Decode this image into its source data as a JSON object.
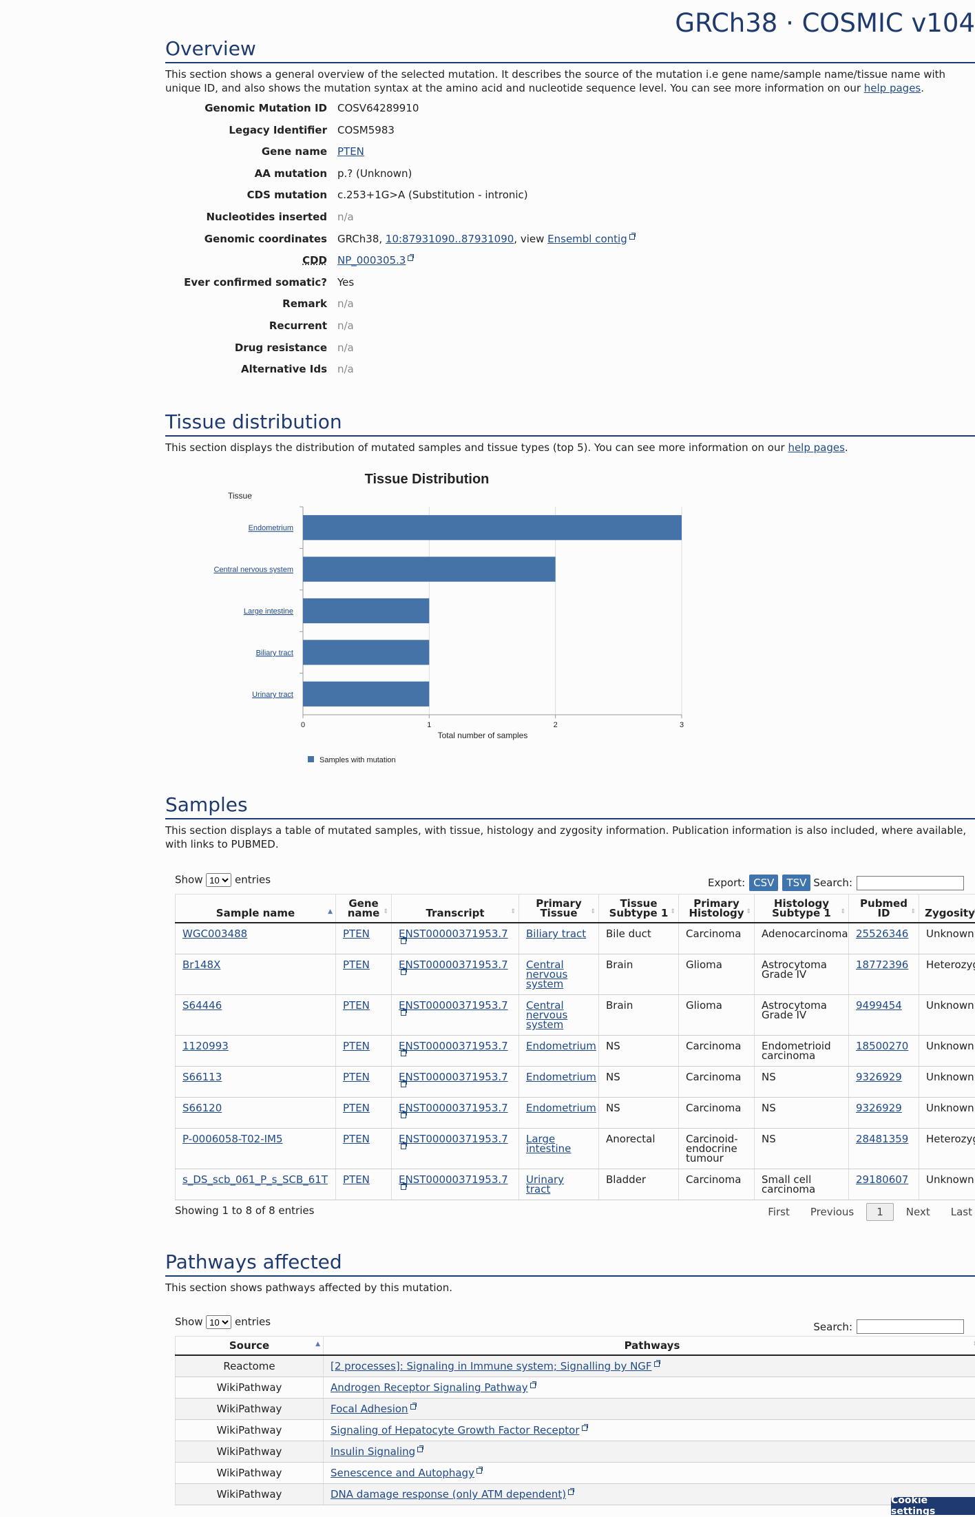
{
  "header": {
    "title": "GRCh38 · COSMIC v104"
  },
  "overview": {
    "title": "Overview",
    "desc_before": "This section shows a general overview of the selected mutation. It describes the source of the mutation i.e gene name/sample name/tissue name with unique ID, and also shows the mutation syntax at the amino acid and nucleotide sequence level. You can see more information on our ",
    "help_link": "help pages",
    "desc_after": ".",
    "fields": {
      "genomic_mutation_id": {
        "label": "Genomic Mutation ID",
        "value": "COSV64289910"
      },
      "legacy_identifier": {
        "label": "Legacy Identifier",
        "value": "COSM5983"
      },
      "gene_name": {
        "label": "Gene name",
        "value": "PTEN"
      },
      "aa_mutation": {
        "label": "AA mutation",
        "value": "p.? (Unknown)"
      },
      "cds_mutation": {
        "label": "CDS mutation",
        "value": "c.253+1G>A (Substitution - intronic)"
      },
      "nucleotides_inserted": {
        "label": "Nucleotides inserted",
        "value": "n/a"
      },
      "genomic_coordinates": {
        "label": "Genomic coordinates",
        "prefix": "GRCh38, ",
        "coord_link": "10:87931090..87931090",
        "middle": ", view ",
        "ensembl_link": "Ensembl contig"
      },
      "cdd": {
        "label": "CDD",
        "value": "NP_000305.3"
      },
      "ever_confirmed_somatic": {
        "label": "Ever confirmed somatic?",
        "value": "Yes"
      },
      "remark": {
        "label": "Remark",
        "value": "n/a"
      },
      "recurrent": {
        "label": "Recurrent",
        "value": "n/a"
      },
      "drug_resistance": {
        "label": "Drug resistance",
        "value": "n/a"
      },
      "alternative_ids": {
        "label": "Alternative Ids",
        "value": "n/a"
      }
    }
  },
  "tissue": {
    "title": "Tissue distribution",
    "desc_before": "This section displays the distribution of mutated samples and tissue types (top 5). You can see more information on our ",
    "help_link": "help pages",
    "desc_after": "."
  },
  "chart_data": {
    "type": "bar",
    "orientation": "horizontal",
    "title": "Tissue Distribution",
    "ylabel": "Tissue",
    "xlabel": "Total number of samples",
    "categories": [
      "Endometrium",
      "Central nervous system",
      "Large intestine",
      "Biliary tract",
      "Urinary tract"
    ],
    "series": [
      {
        "name": "Samples with mutation",
        "values": [
          3,
          2,
          1,
          1,
          1
        ]
      }
    ],
    "xlim": [
      0,
      3
    ],
    "xticks": [
      "0",
      "1",
      "2",
      "3"
    ],
    "grid": true,
    "legend": "bottom-left",
    "color": "#4572a7"
  },
  "samples": {
    "title": "Samples",
    "desc": "This section displays a table of mutated samples, with tissue, histology and zygosity information. Publication information is also included, where available, with links to PUBMED.",
    "show_label": "Show",
    "entries_label": "entries",
    "page_length": "10",
    "export_label": "Export:",
    "csv": "CSV",
    "tsv": "TSV",
    "search_label": "Search:",
    "columns": [
      "Sample name",
      "Gene name",
      "Transcript",
      "Primary Tissue",
      "Tissue Subtype 1",
      "Primary Histology",
      "Histology Subtype 1",
      "Pubmed ID",
      "Zygosity"
    ],
    "rows": [
      {
        "sample": "WGC003488",
        "gene": "PTEN",
        "transcript": "ENST00000371953.7",
        "tissue": "Biliary tract",
        "subtype": "Bile duct",
        "histology": "Carcinoma",
        "hist_subtype": "Adenocarcinoma",
        "pubmed": "25526346",
        "zygosity": "Unknown"
      },
      {
        "sample": "Br148X",
        "gene": "PTEN",
        "transcript": "ENST00000371953.7",
        "tissue": "Central nervous system",
        "subtype": "Brain",
        "histology": "Glioma",
        "hist_subtype": "Astrocytoma Grade IV",
        "pubmed": "18772396",
        "zygosity": "Heterozygous"
      },
      {
        "sample": "S64446",
        "gene": "PTEN",
        "transcript": "ENST00000371953.7",
        "tissue": "Central nervous system",
        "subtype": "Brain",
        "histology": "Glioma",
        "hist_subtype": "Astrocytoma Grade IV",
        "pubmed": "9499454",
        "zygosity": "Unknown"
      },
      {
        "sample": "1120993",
        "gene": "PTEN",
        "transcript": "ENST00000371953.7",
        "tissue": "Endometrium",
        "subtype": "NS",
        "histology": "Carcinoma",
        "hist_subtype": "Endometrioid carcinoma",
        "pubmed": "18500270",
        "zygosity": "Unknown"
      },
      {
        "sample": "S66113",
        "gene": "PTEN",
        "transcript": "ENST00000371953.7",
        "tissue": "Endometrium",
        "subtype": "NS",
        "histology": "Carcinoma",
        "hist_subtype": "NS",
        "pubmed": "9326929",
        "zygosity": "Unknown"
      },
      {
        "sample": "S66120",
        "gene": "PTEN",
        "transcript": "ENST00000371953.7",
        "tissue": "Endometrium",
        "subtype": "NS",
        "histology": "Carcinoma",
        "hist_subtype": "NS",
        "pubmed": "9326929",
        "zygosity": "Unknown"
      },
      {
        "sample": "P-0006058-T02-IM5",
        "gene": "PTEN",
        "transcript": "ENST00000371953.7",
        "tissue": "Large intestine",
        "subtype": "Anorectal",
        "histology": "Carcinoid-endocrine tumour",
        "hist_subtype": "NS",
        "pubmed": "28481359",
        "zygosity": "Heterozygous"
      },
      {
        "sample": "s_DS_scb_061_P_s_SCB_61T",
        "gene": "PTEN",
        "transcript": "ENST00000371953.7",
        "tissue": "Urinary tract",
        "subtype": "Bladder",
        "histology": "Carcinoma",
        "hist_subtype": "Small cell carcinoma",
        "pubmed": "29180607",
        "zygosity": "Unknown"
      }
    ],
    "info": "Showing 1 to 8 of 8 entries",
    "pager": {
      "first": "First",
      "previous": "Previous",
      "current": "1",
      "next": "Next",
      "last": "Last"
    }
  },
  "pathways": {
    "title": "Pathways affected",
    "desc": "This section shows pathways affected by this mutation.",
    "show_label": "Show",
    "entries_label": "entries",
    "page_length": "10",
    "search_label": "Search:",
    "columns": [
      "Source",
      "Pathways"
    ],
    "rows": [
      {
        "source": "Reactome",
        "pathway": "[2 processes]: Signaling in Immune system; Signalling by NGF"
      },
      {
        "source": "WikiPathway",
        "pathway": "Androgen Receptor Signaling Pathway"
      },
      {
        "source": "WikiPathway",
        "pathway": "Focal Adhesion"
      },
      {
        "source": "WikiPathway",
        "pathway": "Signaling of Hepatocyte Growth Factor Receptor"
      },
      {
        "source": "WikiPathway",
        "pathway": "Insulin Signaling"
      },
      {
        "source": "WikiPathway",
        "pathway": "Senescence and Autophagy"
      },
      {
        "source": "WikiPathway",
        "pathway": "DNA damage response (only ATM dependent)"
      }
    ]
  },
  "cookie_button": "Cookie settings"
}
